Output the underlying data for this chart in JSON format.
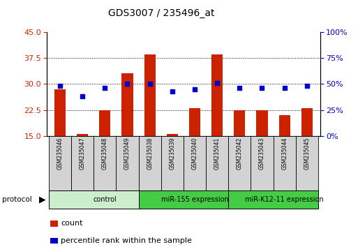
{
  "title": "GDS3007 / 235496_at",
  "samples": [
    "GSM235046",
    "GSM235047",
    "GSM235048",
    "GSM235049",
    "GSM235038",
    "GSM235039",
    "GSM235040",
    "GSM235041",
    "GSM235042",
    "GSM235043",
    "GSM235044",
    "GSM235045"
  ],
  "counts": [
    28.5,
    15.5,
    22.5,
    33.0,
    38.5,
    15.5,
    23.0,
    38.5,
    22.5,
    22.5,
    21.0,
    23.0
  ],
  "percentile_ranks": [
    48,
    38,
    46,
    50,
    50,
    43,
    45,
    51,
    46,
    46,
    46,
    48
  ],
  "groups": [
    {
      "label": "control",
      "start": 0,
      "end": 4,
      "color": "#cceecc"
    },
    {
      "label": "miR-155 expression",
      "start": 4,
      "end": 8,
      "color": "#44cc44"
    },
    {
      "label": "miR-K12-11 expression",
      "start": 8,
      "end": 12,
      "color": "#44cc44"
    }
  ],
  "ylim_left": [
    15,
    45
  ],
  "ylim_right": [
    0,
    100
  ],
  "yticks_left": [
    15,
    22.5,
    30,
    37.5,
    45
  ],
  "yticks_right": [
    0,
    25,
    50,
    75,
    100
  ],
  "bar_color": "#cc2200",
  "dot_color": "#0000cc",
  "background_color": "#ffffff"
}
